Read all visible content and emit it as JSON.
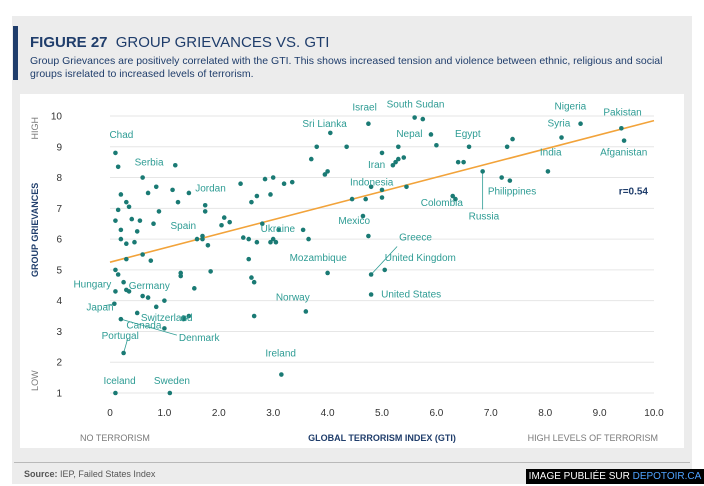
{
  "figure": {
    "number": "FIGURE 27",
    "title": "GROUP GRIEVANCES VS. GTI",
    "subtitle": "Group Grievances are positively correlated with the GTI.  This shows  increased tension and violence between ethnic, religious and social groups isrelated to increased levels of terrorism."
  },
  "footer": {
    "source_label": "Source:",
    "source_text": " IEP, Failed States Index",
    "watermark_prefix": "IMAGE PUBLIÉE SUR ",
    "watermark_link": "DEPOTOIR.CA"
  },
  "colors": {
    "navy": "#1f3d6b",
    "point": "#1a7a74",
    "label": "#2e9c94",
    "trend": "#f2a33a",
    "grid": "#e6e6e6"
  },
  "chart_data": {
    "type": "scatter",
    "xlabel": "GLOBAL TERRORISM INDEX (GTI)",
    "ylabel": "GROUP GRIEVANCES",
    "x_low_label": "NO TERRORISM",
    "x_high_label": "HIGH LEVELS OF TERRORISM",
    "y_low_label": "LOW",
    "y_high_label": "HIGH",
    "xlim": [
      0,
      10
    ],
    "ylim": [
      1,
      10
    ],
    "x_ticks": [
      "0",
      "1.0",
      "2.0",
      "3.0",
      "4.0",
      "5.0",
      "6.0",
      "7.0",
      "8.0",
      "9.0",
      "10.0"
    ],
    "y_ticks": [
      "1",
      "2",
      "3",
      "4",
      "5",
      "6",
      "7",
      "8",
      "9",
      "10"
    ],
    "r_label": "r=0.54",
    "trend": {
      "x": [
        0,
        10
      ],
      "y": [
        5.25,
        9.85
      ]
    },
    "labeled_points": [
      {
        "name": "Chad",
        "x": 0.1,
        "y": 8.8
      },
      {
        "name": "Serbia",
        "x": 0.6,
        "y": 8.0
      },
      {
        "name": "Jordan",
        "x": 1.75,
        "y": 7.1
      },
      {
        "name": "Spain",
        "x": 1.7,
        "y": 6.0
      },
      {
        "name": "Hungary",
        "x": 0.1,
        "y": 4.3
      },
      {
        "name": "Japan",
        "x": 0.08,
        "y": 3.9
      },
      {
        "name": "Germany",
        "x": 1.3,
        "y": 4.9
      },
      {
        "name": "Switzerland",
        "x": 1.45,
        "y": 3.5
      },
      {
        "name": "Canada",
        "x": 1.0,
        "y": 3.1
      },
      {
        "name": "Portugal",
        "x": 0.25,
        "y": 2.3
      },
      {
        "name": "Denmark",
        "x": 0.2,
        "y": 3.4
      },
      {
        "name": "Iceland",
        "x": 0.1,
        "y": 1.0
      },
      {
        "name": "Sweden",
        "x": 1.1,
        "y": 1.0
      },
      {
        "name": "Ireland",
        "x": 3.15,
        "y": 1.6
      },
      {
        "name": "Ukraine",
        "x": 3.1,
        "y": 6.3
      },
      {
        "name": "Mozambique",
        "x": 4.0,
        "y": 4.9
      },
      {
        "name": "Norway",
        "x": 3.6,
        "y": 3.65
      },
      {
        "name": "Sri Lianka",
        "x": 4.05,
        "y": 9.45
      },
      {
        "name": "Israel",
        "x": 4.75,
        "y": 9.75
      },
      {
        "name": "South Sudan",
        "x": 5.6,
        "y": 9.95
      },
      {
        "name": "Iran",
        "x": 5.0,
        "y": 8.8
      },
      {
        "name": "Nepal",
        "x": 5.3,
        "y": 9.0
      },
      {
        "name": "Egypt",
        "x": 6.6,
        "y": 9.0
      },
      {
        "name": "Indonesia",
        "x": 5.0,
        "y": 7.35
      },
      {
        "name": "Colombia",
        "x": 6.3,
        "y": 7.4
      },
      {
        "name": "Mexico",
        "x": 4.75,
        "y": 6.1
      },
      {
        "name": "Greece",
        "x": 4.8,
        "y": 4.85
      },
      {
        "name": "United Kingdom",
        "x": 5.05,
        "y": 5.0
      },
      {
        "name": "United States",
        "x": 4.8,
        "y": 4.2
      },
      {
        "name": "Russia",
        "x": 6.85,
        "y": 8.2
      },
      {
        "name": "Philippines",
        "x": 7.35,
        "y": 7.9
      },
      {
        "name": "India",
        "x": 8.05,
        "y": 8.2
      },
      {
        "name": "Syria",
        "x": 8.3,
        "y": 9.3
      },
      {
        "name": "Nigeria",
        "x": 8.65,
        "y": 9.75
      },
      {
        "name": "Pakistan",
        "x": 9.4,
        "y": 9.6
      },
      {
        "name": "Afganistan",
        "x": 9.45,
        "y": 9.2
      }
    ],
    "other_points": [
      {
        "x": 0.15,
        "y": 8.35
      },
      {
        "x": 0.2,
        "y": 7.45
      },
      {
        "x": 0.3,
        "y": 7.2
      },
      {
        "x": 0.15,
        "y": 6.95
      },
      {
        "x": 0.35,
        "y": 7.05
      },
      {
        "x": 0.1,
        "y": 6.6
      },
      {
        "x": 0.4,
        "y": 6.65
      },
      {
        "x": 0.2,
        "y": 6.3
      },
      {
        "x": 0.2,
        "y": 6.0
      },
      {
        "x": 0.3,
        "y": 5.85
      },
      {
        "x": 0.45,
        "y": 5.9
      },
      {
        "x": 0.5,
        "y": 6.25
      },
      {
        "x": 0.3,
        "y": 5.35
      },
      {
        "x": 0.1,
        "y": 5.0
      },
      {
        "x": 0.15,
        "y": 4.85
      },
      {
        "x": 0.25,
        "y": 4.6
      },
      {
        "x": 0.3,
        "y": 4.35
      },
      {
        "x": 0.35,
        "y": 4.3
      },
      {
        "x": 0.6,
        "y": 4.15
      },
      {
        "x": 0.7,
        "y": 4.1
      },
      {
        "x": 0.5,
        "y": 3.6
      },
      {
        "x": 0.6,
        "y": 5.5
      },
      {
        "x": 0.55,
        "y": 6.6
      },
      {
        "x": 0.7,
        "y": 7.5
      },
      {
        "x": 0.85,
        "y": 7.7
      },
      {
        "x": 0.8,
        "y": 6.5
      },
      {
        "x": 0.9,
        "y": 6.9
      },
      {
        "x": 1.2,
        "y": 8.4
      },
      {
        "x": 1.15,
        "y": 7.6
      },
      {
        "x": 1.25,
        "y": 7.2
      },
      {
        "x": 1.45,
        "y": 7.5
      },
      {
        "x": 1.55,
        "y": 4.4
      },
      {
        "x": 1.3,
        "y": 4.8
      },
      {
        "x": 0.85,
        "y": 3.8
      },
      {
        "x": 1.0,
        "y": 4.0
      },
      {
        "x": 0.75,
        "y": 5.3
      },
      {
        "x": 1.35,
        "y": 3.4
      },
      {
        "x": 1.6,
        "y": 6.0
      },
      {
        "x": 1.7,
        "y": 6.1
      },
      {
        "x": 1.75,
        "y": 6.9
      },
      {
        "x": 1.8,
        "y": 5.8
      },
      {
        "x": 1.85,
        "y": 4.95
      },
      {
        "x": 2.05,
        "y": 6.45
      },
      {
        "x": 2.1,
        "y": 6.7
      },
      {
        "x": 2.2,
        "y": 6.55
      },
      {
        "x": 2.4,
        "y": 7.8
      },
      {
        "x": 2.45,
        "y": 6.05
      },
      {
        "x": 2.55,
        "y": 6.0
      },
      {
        "x": 2.55,
        "y": 5.35
      },
      {
        "x": 2.6,
        "y": 4.75
      },
      {
        "x": 2.65,
        "y": 4.6
      },
      {
        "x": 2.65,
        "y": 3.5
      },
      {
        "x": 2.7,
        "y": 5.9
      },
      {
        "x": 2.8,
        "y": 6.5
      },
      {
        "x": 2.6,
        "y": 7.2
      },
      {
        "x": 2.7,
        "y": 7.4
      },
      {
        "x": 2.85,
        "y": 7.95
      },
      {
        "x": 2.95,
        "y": 7.45
      },
      {
        "x": 2.95,
        "y": 5.9
      },
      {
        "x": 3.0,
        "y": 6.0
      },
      {
        "x": 3.05,
        "y": 5.9
      },
      {
        "x": 3.2,
        "y": 7.8
      },
      {
        "x": 3.0,
        "y": 8.0
      },
      {
        "x": 3.35,
        "y": 7.85
      },
      {
        "x": 3.55,
        "y": 6.3
      },
      {
        "x": 3.65,
        "y": 6.0
      },
      {
        "x": 3.7,
        "y": 8.6
      },
      {
        "x": 3.8,
        "y": 9.0
      },
      {
        "x": 3.95,
        "y": 8.1
      },
      {
        "x": 4.0,
        "y": 8.2
      },
      {
        "x": 4.35,
        "y": 9.0
      },
      {
        "x": 4.45,
        "y": 7.3
      },
      {
        "x": 4.7,
        "y": 7.3
      },
      {
        "x": 4.65,
        "y": 6.75
      },
      {
        "x": 5.0,
        "y": 7.6
      },
      {
        "x": 5.25,
        "y": 8.5
      },
      {
        "x": 5.3,
        "y": 8.6
      },
      {
        "x": 5.4,
        "y": 8.65
      },
      {
        "x": 5.45,
        "y": 7.7
      },
      {
        "x": 5.9,
        "y": 9.4
      },
      {
        "x": 6.0,
        "y": 9.05
      },
      {
        "x": 5.75,
        "y": 9.9
      },
      {
        "x": 6.4,
        "y": 8.5
      },
      {
        "x": 6.5,
        "y": 8.5
      },
      {
        "x": 6.35,
        "y": 7.3
      },
      {
        "x": 7.2,
        "y": 8.0
      },
      {
        "x": 7.3,
        "y": 9.0
      },
      {
        "x": 7.4,
        "y": 9.25
      },
      {
        "x": 5.2,
        "y": 8.4
      },
      {
        "x": 4.8,
        "y": 7.7
      },
      {
        "x": 1.35,
        "y": 3.45
      }
    ]
  }
}
